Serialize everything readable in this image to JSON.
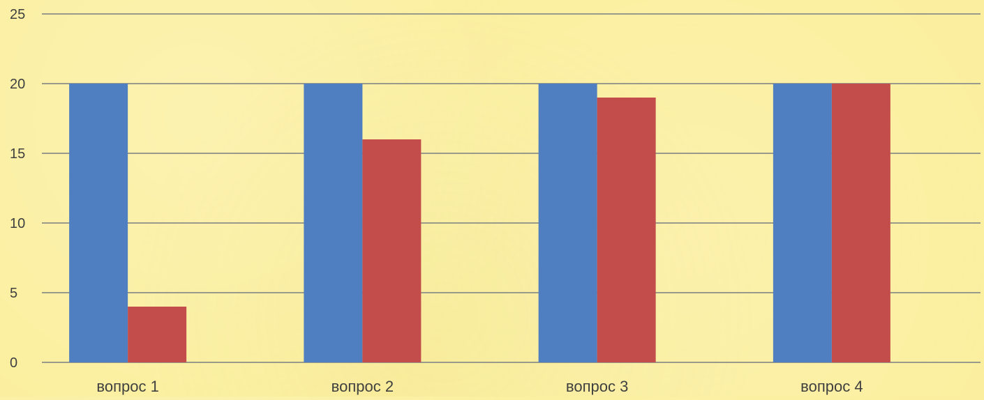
{
  "chart_data": {
    "type": "bar",
    "categories": [
      "вопрос 1",
      "вопрос 2",
      "вопрос 3",
      "вопрос 4"
    ],
    "series": [
      {
        "values": [
          20,
          20,
          20,
          20
        ],
        "color": "#4f7ec1"
      },
      {
        "values": [
          4,
          16,
          19,
          20
        ],
        "color": "#c34d4a"
      }
    ],
    "ylim": [
      0,
      25
    ],
    "yticks": [
      "0",
      "5",
      "10",
      "15",
      "20",
      "25"
    ],
    "grid": true,
    "legend": "none",
    "colors": {
      "background": "#fbef9f",
      "gridline": "#9a9a8a",
      "axis_text": "#404040"
    }
  }
}
